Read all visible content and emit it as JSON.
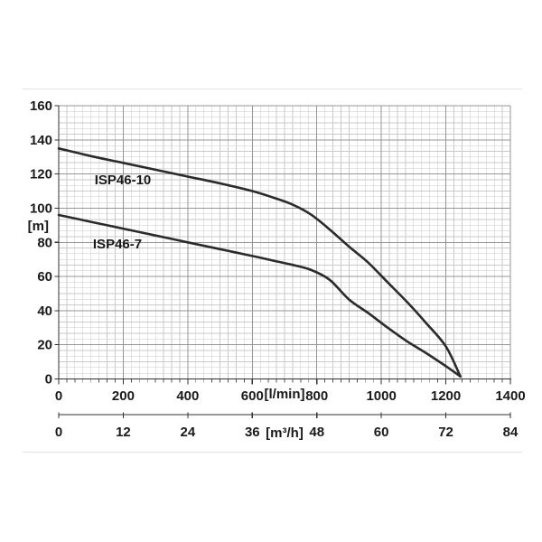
{
  "chart_data": {
    "type": "line",
    "title": "",
    "description": "Pump head vs flow performance curves",
    "grid": "on",
    "legend": "inline-curve-labels",
    "series": [
      {
        "name": "ISP46-10",
        "points": [
          [
            0,
            135
          ],
          [
            100,
            130.5
          ],
          [
            200,
            126.5
          ],
          [
            300,
            122.5
          ],
          [
            400,
            118.5
          ],
          [
            500,
            114.5
          ],
          [
            600,
            110
          ],
          [
            660,
            106.5
          ],
          [
            720,
            102.5
          ],
          [
            780,
            96.5
          ],
          [
            840,
            87.5
          ],
          [
            900,
            77.5
          ],
          [
            960,
            68
          ],
          [
            1020,
            56.5
          ],
          [
            1080,
            45
          ],
          [
            1140,
            32.5
          ],
          [
            1200,
            19
          ],
          [
            1245,
            1.5
          ]
        ]
      },
      {
        "name": "ISP46-7",
        "points": [
          [
            0,
            96
          ],
          [
            100,
            92
          ],
          [
            200,
            88
          ],
          [
            300,
            84
          ],
          [
            400,
            80
          ],
          [
            500,
            76
          ],
          [
            600,
            72
          ],
          [
            660,
            69.5
          ],
          [
            720,
            67
          ],
          [
            780,
            64
          ],
          [
            840,
            58
          ],
          [
            900,
            46.5
          ],
          [
            960,
            38.5
          ],
          [
            1020,
            30
          ],
          [
            1080,
            22
          ],
          [
            1140,
            15
          ],
          [
            1200,
            7.5
          ],
          [
            1245,
            1.5
          ]
        ]
      }
    ],
    "x_axis_primary": {
      "unit_label": "[l/min]",
      "range": [
        0,
        1400
      ],
      "ticks": [
        0,
        200,
        400,
        600,
        800,
        1000,
        1200,
        1400
      ]
    },
    "x_axis_secondary": {
      "unit_label": "[m³/h]",
      "range": [
        0,
        84
      ],
      "ticks": [
        0,
        12,
        24,
        36,
        48,
        60,
        72,
        84
      ]
    },
    "y_axis": {
      "unit_label": "[m]",
      "range": [
        0,
        160
      ],
      "ticks": [
        160,
        140,
        120,
        100,
        80,
        60,
        40,
        20,
        0
      ]
    }
  },
  "colors": {
    "background": "#ffffff",
    "curve": "#2b2b2b",
    "text": "#1a1a1a",
    "grid_minor": "#cacaca",
    "grid_major": "#969696",
    "axis": "#333333",
    "frame": "#e3e3e3"
  }
}
